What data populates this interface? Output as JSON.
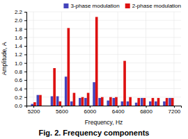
{
  "chart_data": {
    "type": "bar",
    "title": "Fig. 2. Frequency components",
    "x_label": "Frequency, Hz",
    "y_label": "Amplitude, A",
    "x": [
      5200,
      5280,
      5480,
      5560,
      5680,
      5760,
      5880,
      5960,
      6080,
      6160,
      6280,
      6360,
      6480,
      6560,
      6680,
      6760,
      6880,
      6960,
      7080,
      7160
    ],
    "series": [
      {
        "name": "3-phase modulation",
        "color": "#4444bb",
        "values": [
          0.04,
          0.25,
          0.22,
          0.22,
          0.68,
          0.1,
          0.18,
          0.18,
          0.55,
          0.18,
          0.12,
          0.18,
          0.1,
          0.1,
          0.07,
          0.18,
          0.1,
          0.1,
          0.1,
          0.18
        ]
      },
      {
        "name": "2-phase modulation",
        "color": "#dd1111",
        "values": [
          0.08,
          0.25,
          0.88,
          0.1,
          1.82,
          0.3,
          0.2,
          0.3,
          2.08,
          0.2,
          0.2,
          0.2,
          1.05,
          0.2,
          0.18,
          0.18,
          0.18,
          0.18,
          0.18,
          0.18
        ]
      }
    ],
    "xlim": [
      5100,
      7300
    ],
    "ylim": [
      0,
      2.2
    ],
    "xticks": [
      5200,
      5600,
      6000,
      6400,
      6800,
      7200
    ],
    "yticks": [
      {
        "value": 0,
        "label": "0.0"
      },
      0.2,
      0.4,
      0.6,
      0.8,
      {
        "value": 1.0,
        "label": "1.0"
      },
      1.2,
      1.4,
      1.6,
      1.8,
      {
        "value": 2.0,
        "label": "2.0"
      },
      2.2
    ],
    "grid": true,
    "legend": "upper right"
  }
}
